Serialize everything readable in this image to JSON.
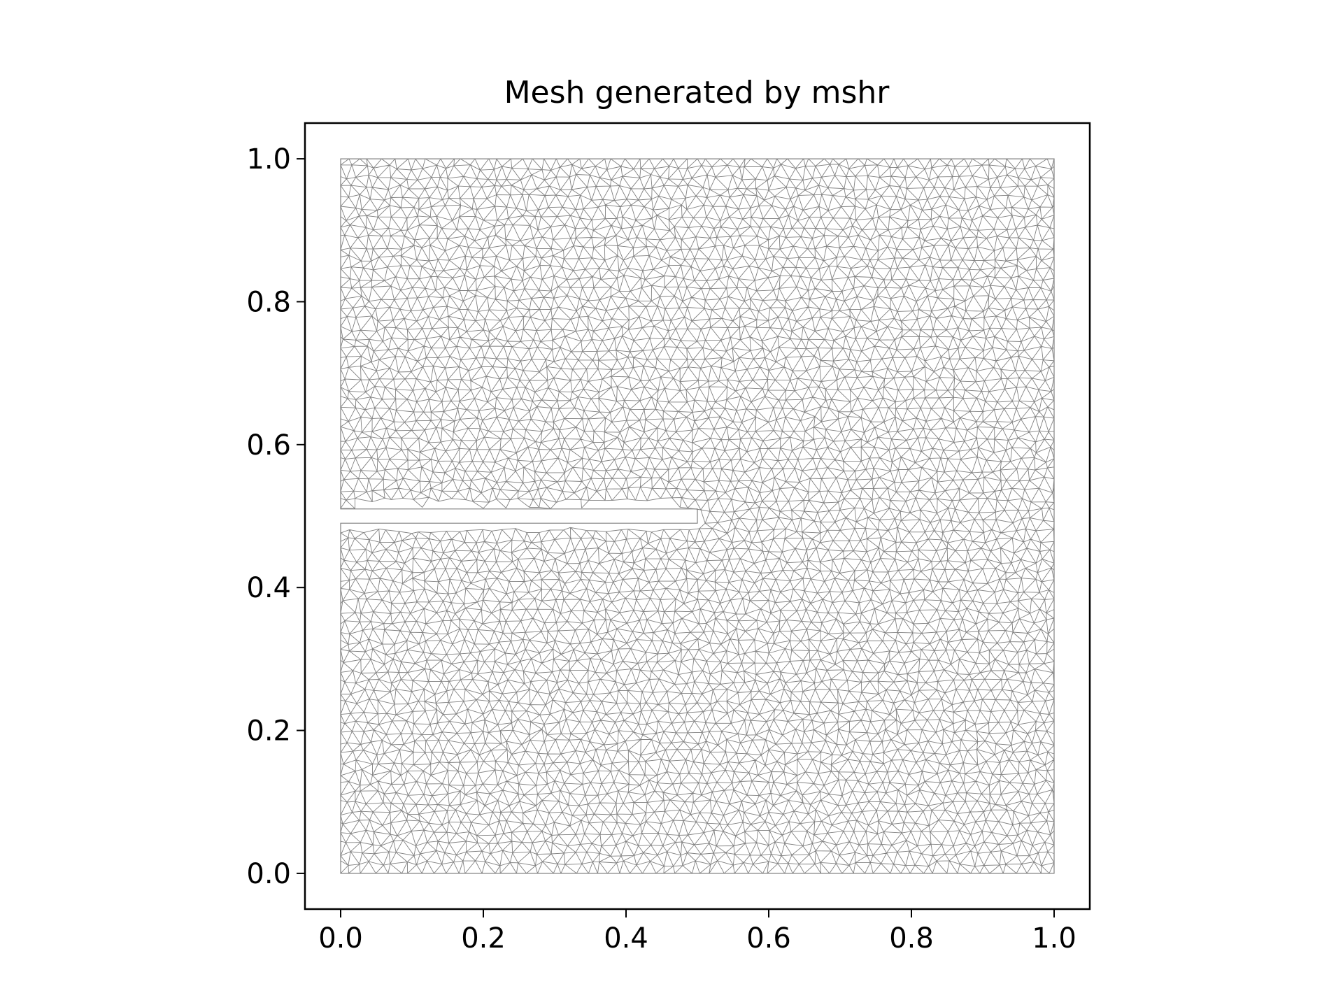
{
  "chart_data": {
    "type": "mesh",
    "title": "Mesh generated by mshr",
    "xlabel": "",
    "ylabel": "",
    "xlim": [
      -0.05,
      1.05
    ],
    "ylim": [
      -0.05,
      1.05
    ],
    "xticks": [
      "0.0",
      "0.2",
      "0.4",
      "0.6",
      "0.8",
      "1.0"
    ],
    "yticks": [
      "0.0",
      "0.2",
      "0.4",
      "0.6",
      "0.8",
      "1.0"
    ],
    "domain": {
      "outer": {
        "x": [
          0.0,
          1.0
        ],
        "y": [
          0.0,
          1.0
        ]
      },
      "slit": {
        "x": [
          0.0,
          0.5
        ],
        "y": [
          0.49,
          0.51
        ]
      }
    },
    "grid": false,
    "legend": "none",
    "mesh_color": "#808080",
    "element_type": "triangle"
  }
}
